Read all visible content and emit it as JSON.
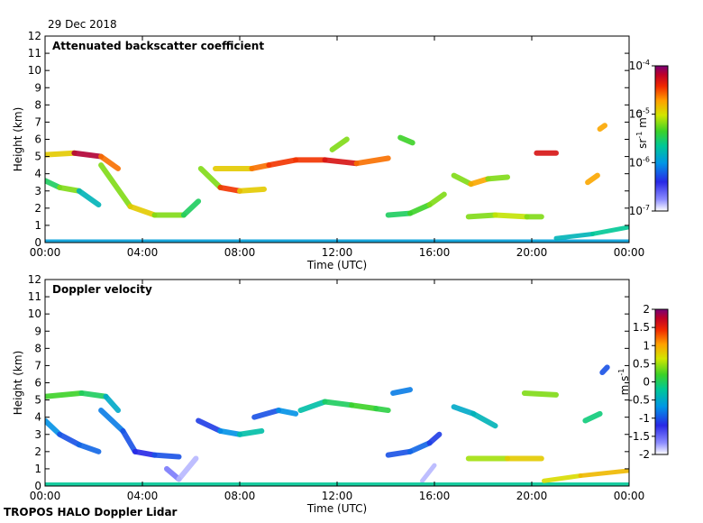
{
  "header": {
    "date": "29 Dec 2018"
  },
  "footer": {
    "instrument": "TROPOS HALO Doppler Lidar"
  },
  "chart_data": [
    {
      "type": "heatmap",
      "title": "Attenuated backscatter coefficient",
      "xlabel": "Time (UTC)",
      "ylabel": "Height (km)",
      "x_ticks": [
        "00:00",
        "04:00",
        "08:00",
        "12:00",
        "16:00",
        "20:00",
        "00:00"
      ],
      "x_range_hours": [
        0,
        24
      ],
      "y_ticks": [
        0,
        1,
        2,
        3,
        4,
        5,
        6,
        7,
        8,
        9,
        10,
        11,
        12
      ],
      "ylim": [
        0,
        12
      ],
      "colorbar": {
        "unit": "sr-1 m-1",
        "scale": "log",
        "ticks": [
          {
            "base": "10",
            "exp": "-4",
            "pos": 0
          },
          {
            "base": "10",
            "exp": "-5",
            "pos": 0.3333
          },
          {
            "base": "10",
            "exp": "-6",
            "pos": 0.6667
          },
          {
            "base": "10",
            "exp": "-7",
            "pos": 1
          }
        ]
      },
      "layers": [
        {
          "t": [
            0,
            1.2,
            2.3,
            3.0
          ],
          "h": [
            5.1,
            5.2,
            5.0,
            4.3
          ],
          "v": [
            0.7,
            0.95,
            0.8,
            0.6
          ]
        },
        {
          "t": [
            0,
            0.6,
            1.4,
            2.2
          ],
          "h": [
            3.6,
            3.2,
            3.0,
            2.2
          ],
          "v": [
            0.5,
            0.6,
            0.4,
            0.35
          ]
        },
        {
          "t": [
            2.3,
            3.5,
            4.5,
            5.7,
            6.3
          ],
          "h": [
            4.5,
            2.1,
            1.6,
            1.6,
            2.4
          ],
          "v": [
            0.6,
            0.7,
            0.6,
            0.5,
            0.4
          ]
        },
        {
          "t": [
            6.4,
            7.2,
            8.0,
            9.0
          ],
          "h": [
            4.3,
            3.2,
            3.0,
            3.1
          ],
          "v": [
            0.6,
            0.85,
            0.7,
            0.6
          ]
        },
        {
          "t": [
            7.0,
            8.5,
            9.2,
            10.3,
            11.5,
            12.8,
            14.1
          ],
          "h": [
            4.3,
            4.3,
            4.5,
            4.8,
            4.8,
            4.6,
            4.9
          ],
          "v": [
            0.7,
            0.8,
            0.85,
            0.85,
            0.9,
            0.8,
            0.8
          ]
        },
        {
          "t": [
            11.8,
            12.4
          ],
          "h": [
            5.4,
            6.0
          ],
          "v": [
            0.6,
            0.55
          ]
        },
        {
          "t": [
            14.6,
            15.1
          ],
          "h": [
            6.1,
            5.8
          ],
          "v": [
            0.55,
            0.6
          ]
        },
        {
          "t": [
            14.1,
            15.0,
            15.8,
            16.4
          ],
          "h": [
            1.6,
            1.7,
            2.2,
            2.8
          ],
          "v": [
            0.5,
            0.55,
            0.6,
            0.6
          ]
        },
        {
          "t": [
            16.8,
            17.5,
            18.2,
            19.0
          ],
          "h": [
            3.9,
            3.4,
            3.7,
            3.8
          ],
          "v": [
            0.6,
            0.75,
            0.6,
            0.55
          ]
        },
        {
          "t": [
            17.4,
            18.5,
            19.8,
            20.4
          ],
          "h": [
            1.5,
            1.6,
            1.5,
            1.5
          ],
          "v": [
            0.6,
            0.65,
            0.6,
            0.55
          ]
        },
        {
          "t": [
            20.2,
            21.0
          ],
          "h": [
            5.2,
            5.2
          ],
          "v": [
            0.9,
            0.85
          ]
        },
        {
          "t": [
            22.3,
            22.7
          ],
          "h": [
            3.5,
            3.9
          ],
          "v": [
            0.75,
            0.7
          ]
        },
        {
          "t": [
            22.8,
            23.0
          ],
          "h": [
            6.6,
            6.8
          ],
          "v": [
            0.75,
            0.7
          ]
        },
        {
          "t": [
            0,
            24
          ],
          "h": [
            0.05,
            0.05
          ],
          "v": [
            0.35,
            0.35
          ]
        },
        {
          "t": [
            21.0,
            22.5,
            24.0
          ],
          "h": [
            0.25,
            0.5,
            0.9
          ],
          "v": [
            0.4,
            0.45,
            0.45
          ]
        }
      ]
    },
    {
      "type": "heatmap",
      "title": "Doppler velocity",
      "xlabel": "Time (UTC)",
      "ylabel": "Height (km)",
      "x_ticks": [
        "00:00",
        "04:00",
        "08:00",
        "12:00",
        "16:00",
        "20:00",
        "00:00"
      ],
      "x_range_hours": [
        0,
        24
      ],
      "y_ticks": [
        0,
        1,
        2,
        3,
        4,
        5,
        6,
        7,
        8,
        9,
        10,
        11,
        12
      ],
      "ylim": [
        0,
        12
      ],
      "colorbar": {
        "unit": "m s-1",
        "scale": "linear",
        "vmin": -2,
        "vmax": 2,
        "ticks": [
          2,
          1.5,
          1,
          0.5,
          0,
          -0.5,
          -1,
          -1.5,
          -2
        ]
      },
      "layers": [
        {
          "t": [
            0,
            1.5,
            2.5,
            3.0
          ],
          "h": [
            5.2,
            5.4,
            5.2,
            4.4
          ],
          "v": [
            0.2,
            0.0,
            -0.5,
            -0.8
          ]
        },
        {
          "t": [
            0,
            0.6,
            1.4,
            2.2
          ],
          "h": [
            3.8,
            3.0,
            2.4,
            2.0
          ],
          "v": [
            -0.7,
            -1.0,
            -0.9,
            -0.8
          ]
        },
        {
          "t": [
            2.3,
            3.2,
            3.7,
            4.5,
            5.5
          ],
          "h": [
            4.4,
            3.2,
            2.0,
            1.8,
            1.7
          ],
          "v": [
            -0.8,
            -1.0,
            -1.2,
            -1.0,
            -0.8
          ]
        },
        {
          "t": [
            5.0,
            5.5,
            6.2
          ],
          "h": [
            1.0,
            0.4,
            1.6
          ],
          "v": [
            -1.6,
            -1.8,
            -1.4
          ]
        },
        {
          "t": [
            6.3,
            7.2,
            8.0,
            8.9
          ],
          "h": [
            3.8,
            3.2,
            3.0,
            3.2
          ],
          "v": [
            -1.1,
            -0.7,
            -0.3,
            0.1
          ]
        },
        {
          "t": [
            8.6,
            9.6,
            10.3
          ],
          "h": [
            4.0,
            4.4,
            4.2
          ],
          "v": [
            -1.0,
            -0.7,
            -0.9
          ]
        },
        {
          "t": [
            10.5,
            11.5,
            12.6,
            13.6,
            14.1
          ],
          "h": [
            4.4,
            4.9,
            4.7,
            4.5,
            4.4
          ],
          "v": [
            -0.3,
            0.0,
            0.2,
            0.1,
            0.2
          ]
        },
        {
          "t": [
            14.3,
            15.0
          ],
          "h": [
            5.4,
            5.6
          ],
          "v": [
            -0.8,
            -1.1
          ]
        },
        {
          "t": [
            14.1,
            15.0,
            15.8,
            16.2
          ],
          "h": [
            1.8,
            2.0,
            2.5,
            3.0
          ],
          "v": [
            -1.0,
            -0.9,
            -1.1,
            -0.9
          ]
        },
        {
          "t": [
            15.5,
            16.0
          ],
          "h": [
            0.3,
            1.2
          ],
          "v": [
            -1.8,
            -1.6
          ]
        },
        {
          "t": [
            16.8,
            17.6,
            18.5
          ],
          "h": [
            4.6,
            4.2,
            3.5
          ],
          "v": [
            -0.5,
            -0.4,
            -0.3
          ]
        },
        {
          "t": [
            17.4,
            19.0,
            20.4
          ],
          "h": [
            1.6,
            1.6,
            1.6
          ],
          "v": [
            0.5,
            0.8,
            1.2
          ]
        },
        {
          "t": [
            19.7,
            21.0
          ],
          "h": [
            5.4,
            5.3
          ],
          "v": [
            0.4,
            0.7
          ]
        },
        {
          "t": [
            22.2,
            22.8
          ],
          "h": [
            3.8,
            4.2
          ],
          "v": [
            -0.1,
            0.0
          ]
        },
        {
          "t": [
            22.9,
            23.1
          ],
          "h": [
            6.6,
            6.9
          ],
          "v": [
            -1.0,
            -0.9
          ]
        },
        {
          "t": [
            0,
            24
          ],
          "h": [
            0.08,
            0.08
          ],
          "v": [
            -0.2,
            -0.2
          ]
        },
        {
          "t": [
            20.5,
            22.0,
            24.0
          ],
          "h": [
            0.3,
            0.6,
            0.9
          ],
          "v": [
            0.7,
            0.9,
            1.1
          ]
        }
      ]
    }
  ]
}
